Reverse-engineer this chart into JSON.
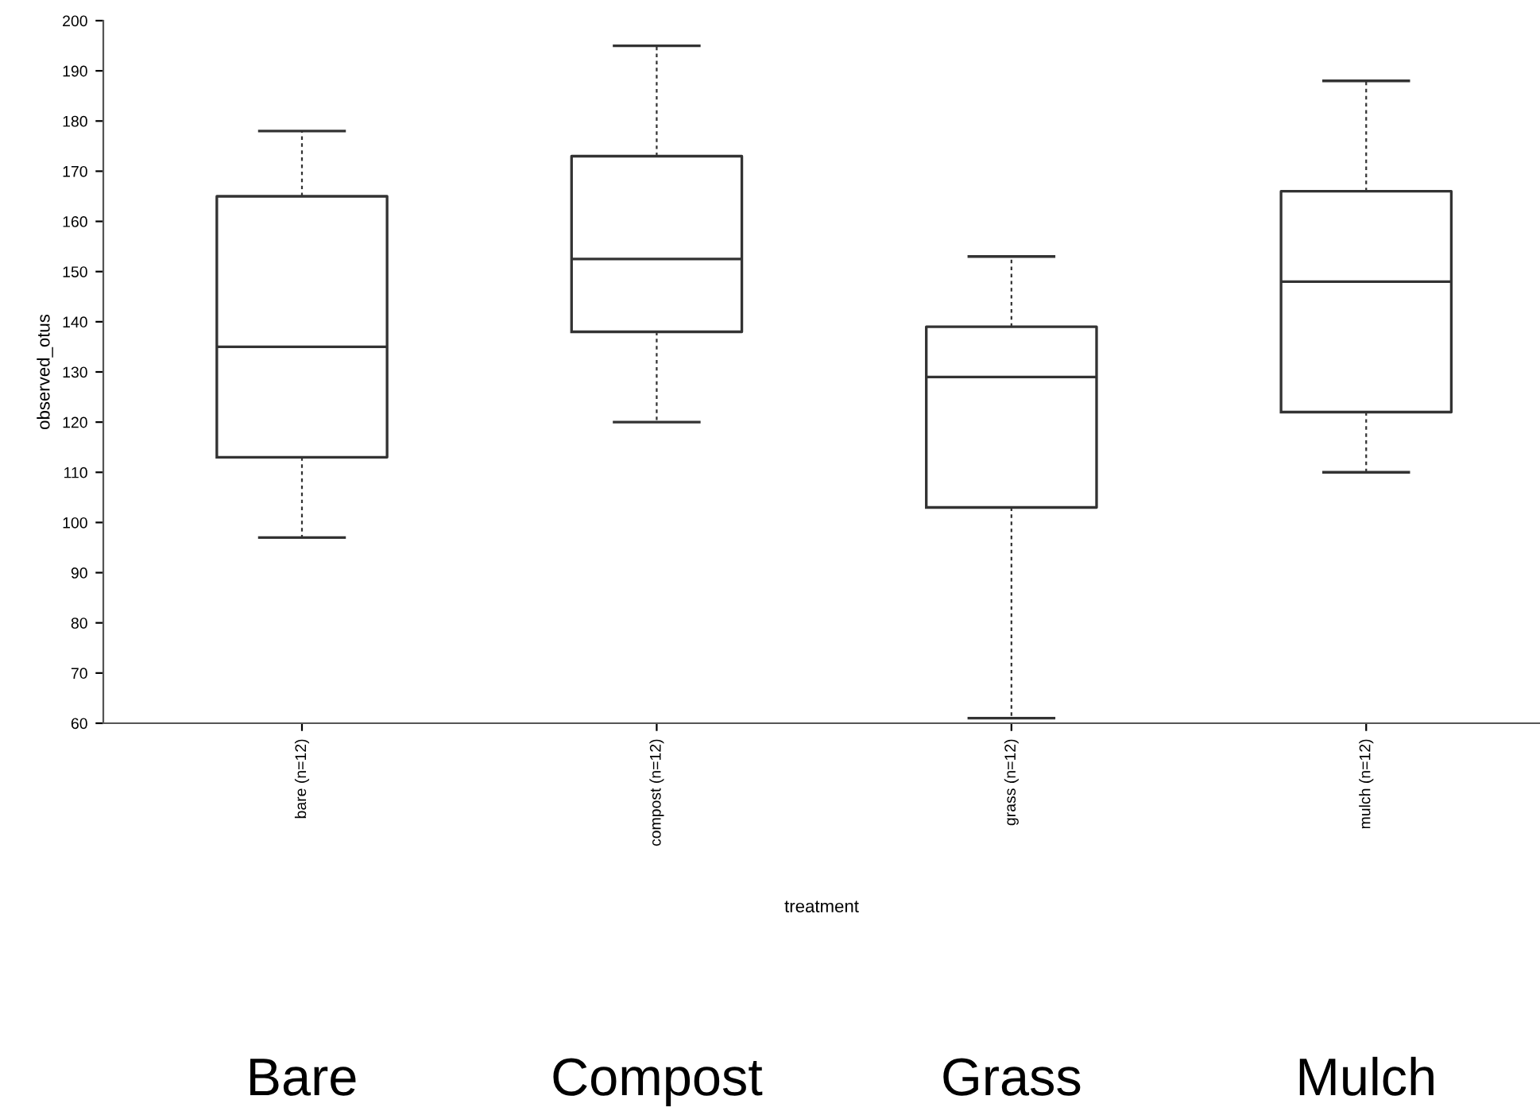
{
  "chart_data": {
    "type": "box",
    "xlabel": "treatment",
    "ylabel": "observed_otus",
    "categories": [
      "bare (n=12)",
      "compost (n=12)",
      "grass (n=12)",
      "mulch (n=12)"
    ],
    "boxes": [
      {
        "low": 97,
        "q1": 113,
        "median": 135,
        "q3": 165,
        "high": 178
      },
      {
        "low": 120,
        "q1": 138,
        "median": 152.5,
        "q3": 173,
        "high": 195
      },
      {
        "low": 61,
        "q1": 103,
        "median": 129,
        "q3": 139,
        "high": 153
      },
      {
        "low": 110,
        "q1": 122,
        "median": 148,
        "q3": 166,
        "high": 188
      }
    ],
    "ylim": [
      60,
      200
    ],
    "yticks": [
      60,
      70,
      80,
      90,
      100,
      110,
      120,
      130,
      140,
      150,
      160,
      170,
      180,
      190,
      200
    ],
    "grid": false,
    "legend": false,
    "annotations": [
      "Bare",
      "Compost",
      "Grass",
      "Mulch"
    ]
  }
}
